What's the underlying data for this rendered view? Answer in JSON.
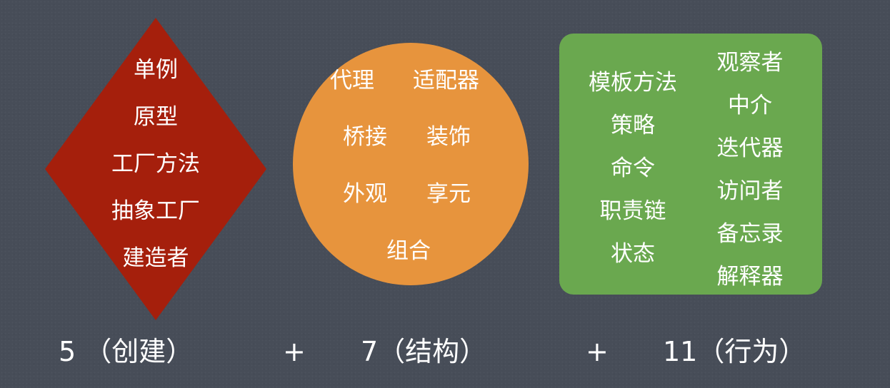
{
  "creational": {
    "color": "#a51f0c",
    "items": [
      "单例",
      "原型",
      "工厂方法",
      "抽象工厂",
      "建造者"
    ]
  },
  "structural": {
    "color": "#e7943d",
    "items": [
      "代理",
      "适配器",
      "桥接",
      "装饰",
      "外观",
      "享元",
      "组合"
    ]
  },
  "behavioral": {
    "color": "#6aa84f",
    "left_column": [
      "模板方法",
      "策略",
      "命令",
      "职责链",
      "状态"
    ],
    "right_column": [
      "观察者",
      "中介",
      "迭代器",
      "访问者",
      "备忘录",
      "解释器"
    ]
  },
  "formula": {
    "creational": "5 （创建）",
    "plus1": "+",
    "structural": "7（结构）",
    "plus2": "+",
    "behavioral": "11（行为）"
  }
}
